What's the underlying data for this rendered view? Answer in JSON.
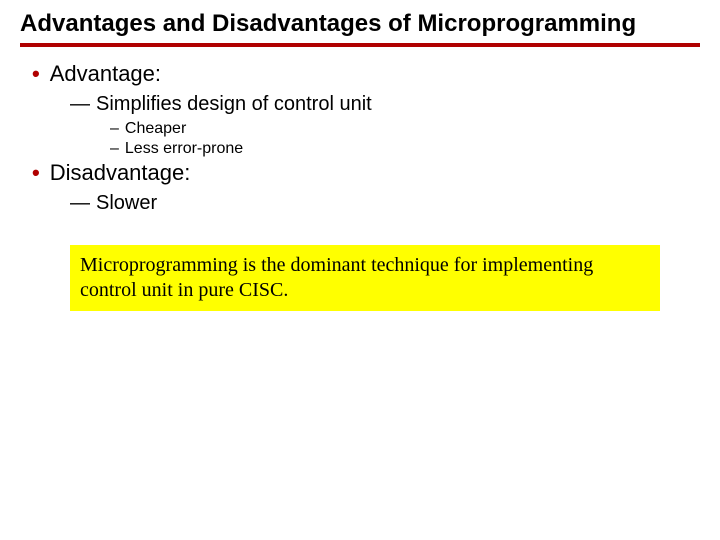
{
  "title": "Advantages and Disadvantages of Microprogramming",
  "sections": [
    {
      "label": "Advantage:",
      "items": [
        {
          "text": "Simplifies design of control unit",
          "subitems": [
            "Cheaper",
            "Less error-prone"
          ]
        }
      ]
    },
    {
      "label": "Disadvantage:",
      "items": [
        {
          "text": "Slower",
          "subitems": []
        }
      ]
    }
  ],
  "highlight": "Microprogramming is the dominant technique for implementing control unit in pure CISC.",
  "colors": {
    "accent": "#b00000",
    "highlight_bg": "#ffff00",
    "text": "#000000",
    "background": "#ffffff"
  },
  "fonts": {
    "title_size": 24,
    "level1_size": 22,
    "level2_size": 20,
    "level3_size": 16,
    "highlight_size": 20
  }
}
